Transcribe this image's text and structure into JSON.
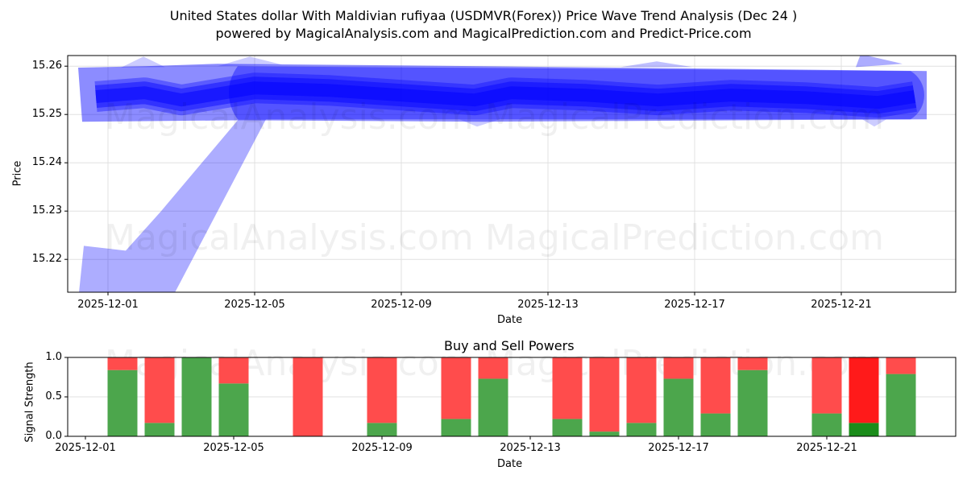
{
  "header": {
    "title": "United States dollar With Maldivian rufiyaa (USDMVR(Forex)) Price Wave Trend Analysis (Dec 24 )",
    "subtitle": "powered by MagicalAnalysis.com and MagicalPrediction.com and Predict-Price.com"
  },
  "watermarks": {
    "left": "MagicalAnalysis.com",
    "right": "MagicalPrediction.com"
  },
  "colors": {
    "wave": "#0000ff",
    "buy": "#4ca64c",
    "sell": "#ff4c4c",
    "buy_strong": "#1a8c1a",
    "sell_strong": "#ff1a1a",
    "grid": "#e0e0e0"
  },
  "chart_data": [
    {
      "type": "area",
      "title": "Price Wave Trend Analysis",
      "xlabel": "Date",
      "ylabel": "Price",
      "ylim": [
        15.2132,
        15.2622
      ],
      "yticks": [
        "15.22",
        "15.23",
        "15.24",
        "15.25",
        "15.26"
      ],
      "xticks": [
        "2025-12-01",
        "2025-12-05",
        "2025-12-09",
        "2025-12-13",
        "2025-12-17",
        "2025-12-21"
      ],
      "grid": true,
      "series": [
        {
          "name": "wave-center",
          "x": [
            "2025-11-30",
            "2025-12-02",
            "2025-12-03",
            "2025-12-05",
            "2025-12-07",
            "2025-12-09",
            "2025-12-11",
            "2025-12-12",
            "2025-12-14",
            "2025-12-16",
            "2025-12-18",
            "2025-12-20",
            "2025-12-22",
            "2025-12-23"
          ],
          "values": [
            15.2537,
            15.2545,
            15.253,
            15.2555,
            15.255,
            15.254,
            15.253,
            15.2545,
            15.254,
            15.253,
            15.254,
            15.2535,
            15.2525,
            15.2537
          ]
        },
        {
          "name": "outer-band-upper",
          "x": [
            "2025-11-30",
            "2025-12-23"
          ],
          "values": [
            15.2597,
            15.259
          ]
        },
        {
          "name": "outer-band-lower",
          "x": [
            "2025-11-30",
            "2025-12-23"
          ],
          "values": [
            15.2485,
            15.249
          ]
        },
        {
          "name": "early-trend-leg",
          "x": [
            "2025-11-30",
            "2025-12-01",
            "2025-12-03",
            "2025-12-04"
          ],
          "values": [
            15.214,
            15.222,
            15.231,
            15.249
          ]
        }
      ]
    },
    {
      "type": "bar",
      "title": "Buy and Sell Powers",
      "xlabel": "Date",
      "ylabel": "Signal Strength",
      "ylim": [
        0,
        1.0
      ],
      "yticks": [
        "0.0",
        "0.5",
        "1.0"
      ],
      "xticks": [
        "2025-12-01",
        "2025-12-05",
        "2025-12-09",
        "2025-12-13",
        "2025-12-17",
        "2025-12-21"
      ],
      "grid": true,
      "categories": [
        "2025-12-02",
        "2025-12-03",
        "2025-12-04",
        "2025-12-05",
        "2025-12-07",
        "2025-12-09",
        "2025-12-11",
        "2025-12-12",
        "2025-12-14",
        "2025-12-15",
        "2025-12-16",
        "2025-12-17",
        "2025-12-18",
        "2025-12-19",
        "2025-12-21",
        "2025-12-22",
        "2025-12-23"
      ],
      "series": [
        {
          "name": "Buy",
          "values": [
            0.84,
            0.17,
            1.0,
            0.67,
            0.0,
            0.17,
            0.22,
            0.73,
            0.22,
            0.06,
            0.17,
            0.73,
            0.29,
            0.84,
            0.29,
            0.17,
            0.79
          ]
        },
        {
          "name": "Sell",
          "values": [
            0.16,
            0.83,
            0.0,
            0.33,
            1.0,
            0.83,
            0.78,
            0.27,
            0.78,
            0.94,
            0.83,
            0.27,
            0.71,
            0.16,
            0.71,
            0.83,
            0.21
          ]
        }
      ],
      "highlighted": [
        "2025-12-22"
      ]
    }
  ]
}
